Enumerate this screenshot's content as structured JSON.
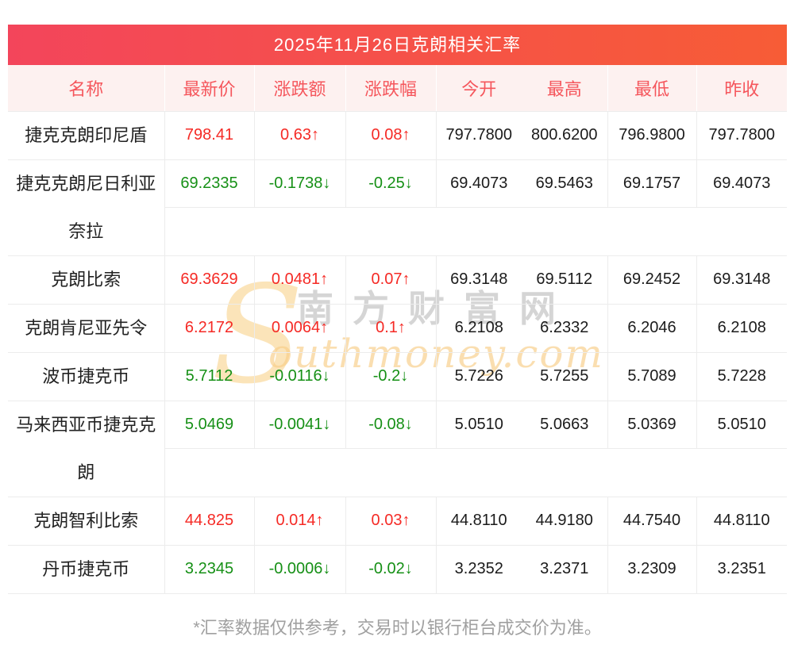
{
  "page": {
    "title": "2025年11月26日克朗相关汇率",
    "footnote": "*汇率数据仅供参考，交易时以银行柜台成交价为准。"
  },
  "colors": {
    "banner_gradient_left": "#f3455b",
    "banner_gradient_right": "#f75c36",
    "header_bg": "#fdf1f0",
    "header_text": "#f5565c",
    "up_red": "#f52a25",
    "down_green": "#169016",
    "neutral_text": "#1b1b1b",
    "grid_border": "#ececec",
    "footnote_gray": "#a0a0a0"
  },
  "watermark": {
    "s_glyph": "S",
    "cn_text": "南方财富网",
    "en_text": "outhmoney.com"
  },
  "table": {
    "headers": [
      "名称",
      "最新价",
      "涨跌额",
      "涨跌幅",
      "今开",
      "最高",
      "最低",
      "昨收"
    ],
    "arrow_up": "↑",
    "arrow_down": "↓",
    "rows": [
      {
        "name_lines": [
          "捷克克朗印尼盾"
        ],
        "last": "798.41",
        "change": "0.63",
        "pct": "0.08",
        "direction": "up",
        "open": "797.7800",
        "high": "800.6200",
        "low": "796.9800",
        "prev_close": "797.7800"
      },
      {
        "name_lines": [
          "捷克克朗尼日利亚",
          "奈拉"
        ],
        "last": "69.2335",
        "change": "-0.1738",
        "pct": "-0.25",
        "direction": "down",
        "open": "69.4073",
        "high": "69.5463",
        "low": "69.1757",
        "prev_close": "69.4073"
      },
      {
        "name_lines": [
          "克朗比索"
        ],
        "last": "69.3629",
        "change": "0.0481",
        "pct": "0.07",
        "direction": "up",
        "open": "69.3148",
        "high": "69.5112",
        "low": "69.2452",
        "prev_close": "69.3148"
      },
      {
        "name_lines": [
          "克朗肯尼亚先令"
        ],
        "last": "6.2172",
        "change": "0.0064",
        "pct": "0.1",
        "direction": "up",
        "open": "6.2108",
        "high": "6.2332",
        "low": "6.2046",
        "prev_close": "6.2108"
      },
      {
        "name_lines": [
          "波币捷克币"
        ],
        "last": "5.7112",
        "change": "-0.0116",
        "pct": "-0.2",
        "direction": "down",
        "open": "5.7226",
        "high": "5.7255",
        "low": "5.7089",
        "prev_close": "5.7228"
      },
      {
        "name_lines": [
          "马来西亚币捷克克",
          "朗"
        ],
        "last": "5.0469",
        "change": "-0.0041",
        "pct": "-0.08",
        "direction": "down",
        "open": "5.0510",
        "high": "5.0663",
        "low": "5.0369",
        "prev_close": "5.0510"
      },
      {
        "name_lines": [
          "克朗智利比索"
        ],
        "last": "44.825",
        "change": "0.014",
        "pct": "0.03",
        "direction": "up",
        "open": "44.8110",
        "high": "44.9180",
        "low": "44.7540",
        "prev_close": "44.8110"
      },
      {
        "name_lines": [
          "丹币捷克币"
        ],
        "last": "3.2345",
        "change": "-0.0006",
        "pct": "-0.02",
        "direction": "down",
        "open": "3.2352",
        "high": "3.2371",
        "low": "3.2309",
        "prev_close": "3.2351"
      }
    ]
  }
}
